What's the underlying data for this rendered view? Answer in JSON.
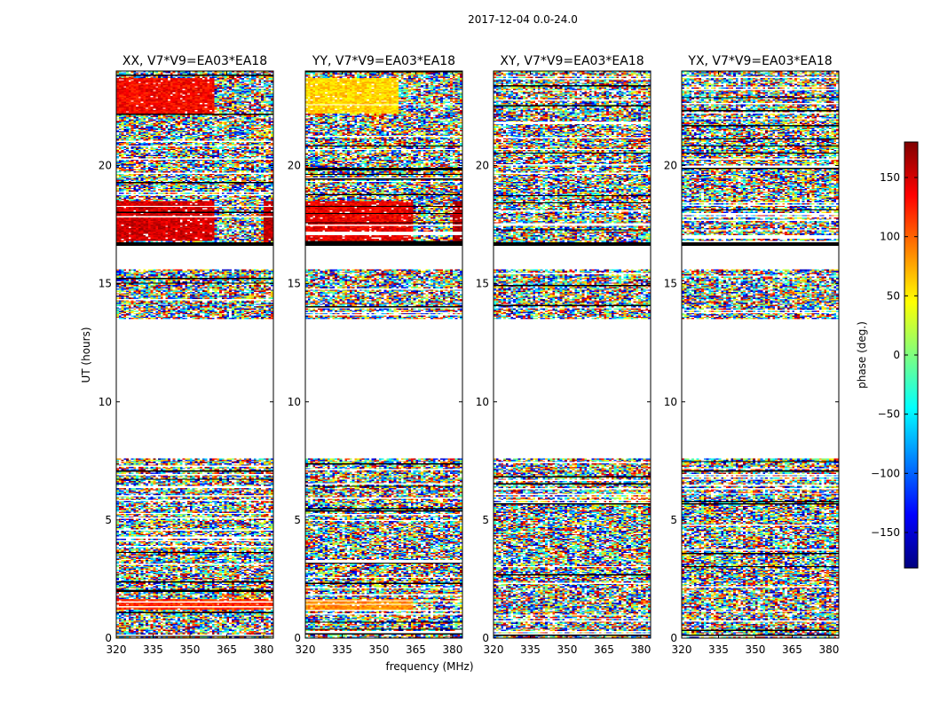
{
  "chart_data": {
    "type": "heatmap",
    "suptitle": "2017-12-04 0.0-24.0",
    "xlabel": "frequency (MHz)",
    "ylabel": "UT (hours)",
    "xlim": [
      320,
      384
    ],
    "ylim": [
      0,
      24
    ],
    "xticks": [
      320,
      335,
      350,
      365,
      380
    ],
    "yticks": [
      0,
      5,
      10,
      15,
      20
    ],
    "colorbar": {
      "label": "phase (deg.)",
      "range": [
        -180,
        180
      ],
      "ticks": [
        150,
        100,
        50,
        0,
        -50,
        -100,
        -150
      ],
      "tick_labels": [
        "150",
        "100",
        "50",
        "0",
        "−50",
        "−100",
        "−150"
      ],
      "colormap": "jet",
      "colors": [
        "#00007f",
        "#0000ff",
        "#007fff",
        "#00ffff",
        "#7fff7f",
        "#ffff00",
        "#ff7f00",
        "#ff0000",
        "#7f0000"
      ]
    },
    "gaps_hours": [
      [
        7.6,
        13.5
      ],
      [
        15.6,
        16.6
      ]
    ],
    "flagged_rows_hours": [
      [
        16.55,
        16.75
      ]
    ],
    "panels": [
      {
        "polarization": "XX",
        "title": "XX, V7*V9=EA03*EA18",
        "coherent_bands": [
          {
            "t0": 1.2,
            "t1": 1.65,
            "f0": 320,
            "f1": 384,
            "phase": 118
          },
          {
            "t0": 16.8,
            "t1": 18.5,
            "f0": 320,
            "f1": 360,
            "phase": 150
          },
          {
            "t0": 16.8,
            "t1": 18.5,
            "f0": 380,
            "f1": 384,
            "phase": 160
          },
          {
            "t0": 22.2,
            "t1": 23.7,
            "f0": 320,
            "f1": 360,
            "phase": 135
          }
        ]
      },
      {
        "polarization": "YY",
        "title": "YY, V7*V9=EA03*EA18",
        "coherent_bands": [
          {
            "t0": 1.2,
            "t1": 1.65,
            "f0": 320,
            "f1": 364,
            "phase": 85
          },
          {
            "t0": 16.8,
            "t1": 18.5,
            "f0": 320,
            "f1": 364,
            "phase": 140
          },
          {
            "t0": 16.8,
            "t1": 18.5,
            "f0": 380,
            "f1": 384,
            "phase": 160
          },
          {
            "t0": 22.2,
            "t1": 23.7,
            "f0": 320,
            "f1": 358,
            "phase": 60
          }
        ]
      },
      {
        "polarization": "XY",
        "title": "XY, V7*V9=EA03*EA18",
        "coherent_bands": []
      },
      {
        "polarization": "YX",
        "title": "YX, V7*V9=EA03*EA18",
        "coherent_bands": []
      }
    ]
  }
}
